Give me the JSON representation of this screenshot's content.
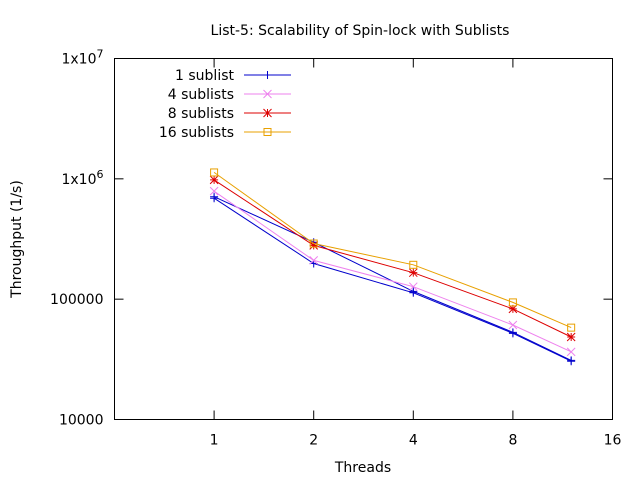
{
  "chart_data": {
    "type": "line",
    "title": "List-5: Scalability of Spin-lock with Sublists",
    "xlabel": "Threads",
    "ylabel": "Throughput (1/s)",
    "x_scale": "log2",
    "y_scale": "log10",
    "xlim": [
      0.5,
      16
    ],
    "ylim": [
      10000,
      10000000
    ],
    "x_ticks": [
      {
        "value": 1,
        "label": "1"
      },
      {
        "value": 2,
        "label": "2"
      },
      {
        "value": 4,
        "label": "4"
      },
      {
        "value": 8,
        "label": "8"
      },
      {
        "value": 16,
        "label": "16"
      }
    ],
    "y_ticks": [
      {
        "value": 10000,
        "label": "10000"
      },
      {
        "value": 100000,
        "label": "100000"
      },
      {
        "value": 1000000,
        "label": "1x10^6",
        "base": "1x10",
        "exp": "6"
      },
      {
        "value": 10000000,
        "label": "1x10^7",
        "base": "1x10",
        "exp": "7"
      }
    ],
    "legend_position": "top-left",
    "grid": false,
    "series": [
      {
        "name": "1 sublist",
        "color": "#0000cc",
        "marker": "plus",
        "x": [
          1,
          2,
          4,
          8,
          12
        ],
        "y": [
          690000,
          198000,
          113000,
          52000,
          30500
        ]
      },
      {
        "name": "1 sublist",
        "color": "#0000cc",
        "marker": "plus",
        "legend": false,
        "x": [
          1,
          2,
          4,
          8,
          12
        ],
        "y": [
          710000,
          297000,
          116000,
          53000,
          31000
        ]
      },
      {
        "name": "4 sublists",
        "color": "#ee82ee",
        "marker": "cross",
        "x": [
          1,
          2,
          4,
          8,
          12
        ],
        "y": [
          790000,
          210000,
          127000,
          61000,
          36500
        ]
      },
      {
        "name": "8 sublists",
        "color": "#dd0000",
        "marker": "star",
        "x": [
          1,
          2,
          4,
          8,
          12
        ],
        "y": [
          980000,
          280000,
          166000,
          83000,
          48500
        ]
      },
      {
        "name": "16 sublists",
        "color": "#e8a000",
        "marker": "square",
        "x": [
          1,
          2,
          4,
          8,
          12
        ],
        "y": [
          1130000,
          290000,
          193000,
          94000,
          58000
        ]
      }
    ]
  }
}
